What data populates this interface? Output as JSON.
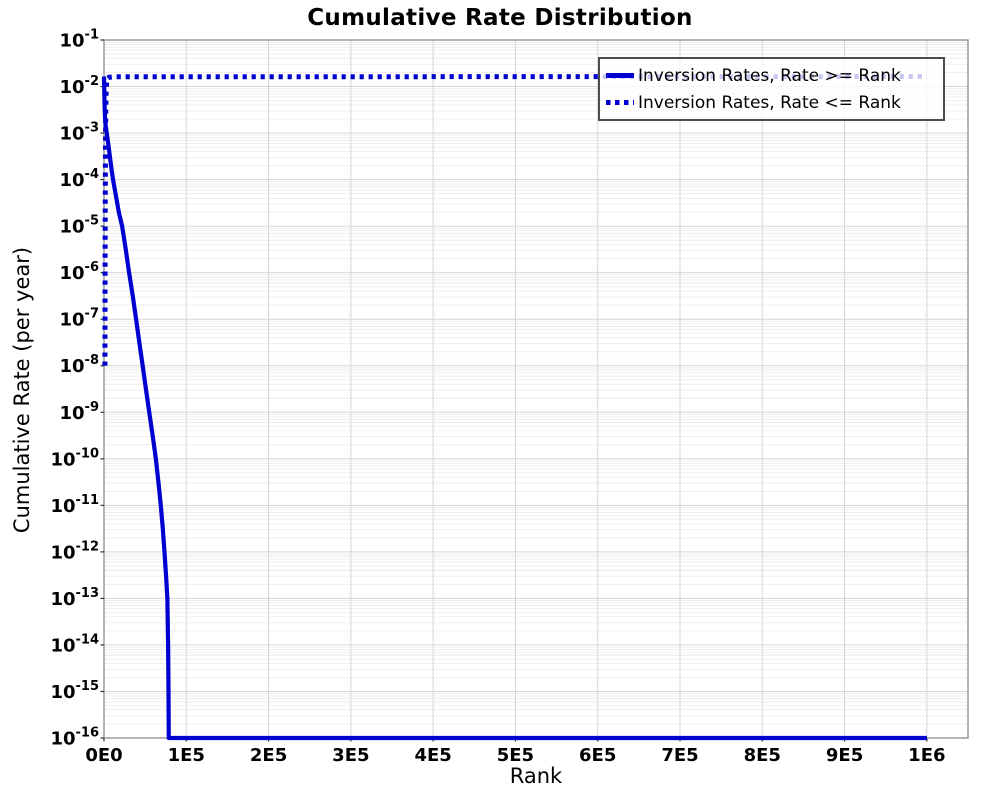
{
  "chart_data": {
    "type": "line",
    "title": "Cumulative Rate Distribution",
    "xlabel": "Rank",
    "ylabel": "Cumulative Rate (per year)",
    "xlim": [
      0,
      1050000
    ],
    "y_log10_range": [
      -1,
      -16
    ],
    "x_ticks": [
      0,
      100000,
      200000,
      300000,
      400000,
      500000,
      600000,
      700000,
      800000,
      900000,
      1000000
    ],
    "x_tick_labels": [
      "0E0",
      "1E5",
      "2E5",
      "3E5",
      "4E5",
      "5E5",
      "6E5",
      "7E5",
      "8E5",
      "9E5",
      "1E6"
    ],
    "y_tick_exponents": [
      -1,
      -2,
      -3,
      -4,
      -5,
      -6,
      -7,
      -8,
      -9,
      -10,
      -11,
      -12,
      -13,
      -14,
      -15,
      -16
    ],
    "grid": "major and log-minor horizontal, major vertical",
    "legend_position": "upper right",
    "colors": {
      "line": "#0000d0",
      "grid_major": "#d6d6d6",
      "grid_minor": "#ececec",
      "spine": "#9c9c9c",
      "tick": "#333333",
      "legend_border": "#4d4d4d"
    },
    "series": [
      {
        "name": "Inversion Rates, Rate >= Rank",
        "style": "solid",
        "points": [
          [
            0,
            0.0164
          ],
          [
            300,
            0.0085
          ],
          [
            700,
            0.004
          ],
          [
            1200,
            0.0022
          ],
          [
            2000,
            0.00145
          ],
          [
            3300,
            0.001
          ],
          [
            5200,
            0.00058
          ],
          [
            7500,
            0.00028
          ],
          [
            9300,
            0.00016
          ],
          [
            11000,
            0.0001
          ],
          [
            14200,
            4.8e-05
          ],
          [
            18000,
            2e-05
          ],
          [
            22000,
            1e-05
          ],
          [
            26300,
            3.3e-06
          ],
          [
            30500,
            1e-06
          ],
          [
            35000,
            3.1e-07
          ],
          [
            39000,
            1e-07
          ],
          [
            43000,
            3.1e-08
          ],
          [
            47000,
            1e-08
          ],
          [
            51000,
            3.1e-09
          ],
          [
            55000,
            1e-09
          ],
          [
            59200,
            3.1e-10
          ],
          [
            63000,
            1e-10
          ],
          [
            66200,
            3.1e-11
          ],
          [
            69000,
            1e-11
          ],
          [
            71500,
            3.1e-12
          ],
          [
            73500,
            1e-12
          ],
          [
            75400,
            3.1e-13
          ],
          [
            77000,
            1e-13
          ],
          [
            77900,
            1e-14
          ],
          [
            78400,
            1e-15
          ],
          [
            78700,
            1e-16
          ],
          [
            1000000,
            1e-16
          ]
        ]
      },
      {
        "name": "Inversion Rates, Rate <= Rank",
        "style": "dotted",
        "points": [
          [
            1100,
            1e-08
          ],
          [
            1250,
            3e-07
          ],
          [
            1400,
            6e-06
          ],
          [
            1600,
            8e-05
          ],
          [
            1850,
            0.0006
          ],
          [
            2150,
            0.0028
          ],
          [
            2600,
            0.008
          ],
          [
            3200,
            0.0125
          ],
          [
            4200,
            0.015
          ],
          [
            6000,
            0.0158
          ],
          [
            12000,
            0.0162
          ],
          [
            1000000,
            0.0164
          ]
        ]
      }
    ]
  }
}
